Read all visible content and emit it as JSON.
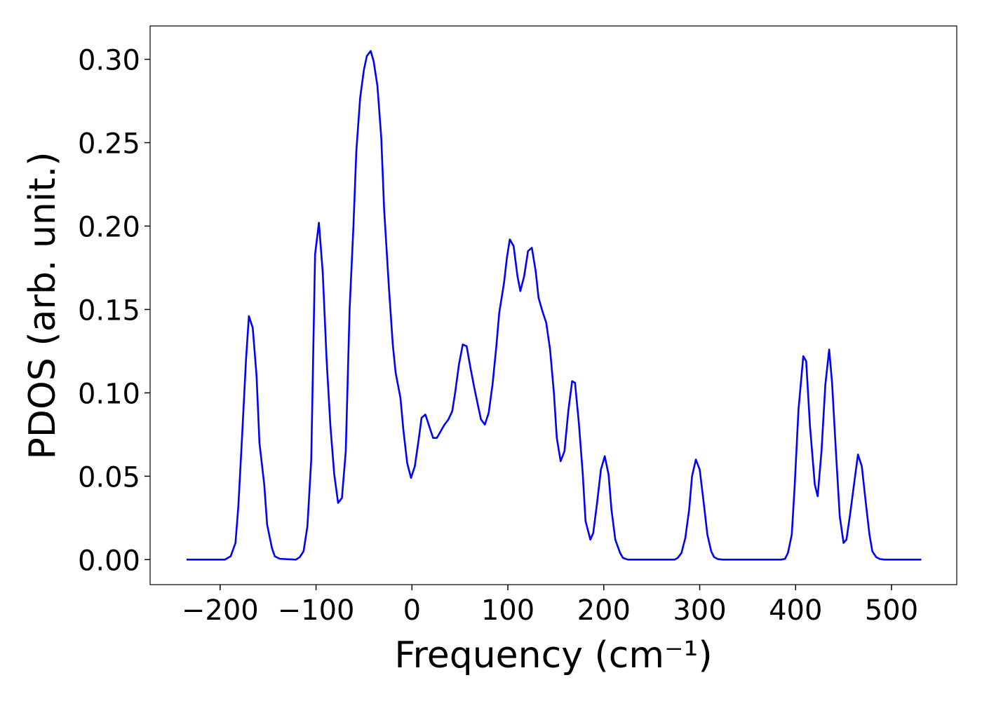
{
  "chart_data": {
    "type": "line",
    "xlabel": "Frequency (cm⁻¹)",
    "ylabel": "PDOS (arb. unit.)",
    "color": "#0000ff",
    "xlim": [
      -273,
      568
    ],
    "ylim": [
      -0.015,
      0.32
    ],
    "xticks": [
      {
        "value": -200,
        "label": "−200"
      },
      {
        "value": -100,
        "label": "−100"
      },
      0,
      100,
      200,
      300,
      400,
      500
    ],
    "yticks": [
      {
        "value": 0,
        "label": "0.00"
      },
      {
        "value": 0.05,
        "label": "0.05"
      },
      {
        "value": 0.1,
        "label": "0.10"
      },
      {
        "value": 0.15,
        "label": "0.15"
      },
      {
        "value": 0.2,
        "label": "0.20"
      },
      {
        "value": 0.25,
        "label": "0.25"
      },
      {
        "value": 0.3,
        "label": "0.30"
      }
    ],
    "x": [
      -235,
      -195,
      -189,
      -184,
      -181,
      -177,
      -173,
      -170,
      -166,
      -162,
      -159,
      -154,
      -151,
      -146,
      -143,
      -138,
      -121,
      -117,
      -113,
      -109,
      -105,
      -101,
      -97,
      -93,
      -89,
      -85,
      -81,
      -77,
      -73,
      -69,
      -65,
      -61,
      -58,
      -54,
      -50,
      -47,
      -43,
      -40,
      -36,
      -32,
      -29,
      -24,
      -20,
      -17,
      -12,
      -9,
      -5,
      -1,
      3,
      7,
      10,
      14,
      18,
      22,
      26,
      30,
      34,
      38,
      42,
      45,
      49,
      53,
      57,
      61,
      65,
      69,
      72,
      76,
      80,
      84,
      88,
      91,
      96,
      99,
      102,
      106,
      110,
      113,
      117,
      121,
      125,
      129,
      132,
      136,
      140,
      144,
      148,
      151,
      155,
      159,
      163,
      167,
      170,
      174,
      178,
      181,
      186,
      189,
      193,
      197,
      201,
      205,
      208,
      212,
      217,
      220,
      225,
      274,
      277,
      281,
      285,
      289,
      292,
      296,
      300,
      304,
      308,
      312,
      315,
      319,
      324,
      385,
      389,
      392,
      396,
      399,
      403,
      408,
      411,
      415,
      420,
      423,
      427,
      431,
      435,
      438,
      442,
      446,
      450,
      453,
      457,
      462,
      465,
      469,
      473,
      477,
      480,
      484,
      488,
      493,
      531
    ],
    "values": [
      0,
      0,
      0.002,
      0.01,
      0.032,
      0.075,
      0.12,
      0.146,
      0.139,
      0.11,
      0.07,
      0.045,
      0.021,
      0.007,
      0.002,
      0.0005,
      0,
      0.0015,
      0.005,
      0.02,
      0.06,
      0.183,
      0.202,
      0.172,
      0.12,
      0.08,
      0.051,
      0.034,
      0.037,
      0.065,
      0.15,
      0.2,
      0.245,
      0.277,
      0.294,
      0.302,
      0.305,
      0.299,
      0.284,
      0.253,
      0.21,
      0.163,
      0.129,
      0.112,
      0.097,
      0.078,
      0.058,
      0.049,
      0.056,
      0.072,
      0.085,
      0.087,
      0.08,
      0.073,
      0.073,
      0.077,
      0.081,
      0.084,
      0.089,
      0.1,
      0.117,
      0.129,
      0.128,
      0.115,
      0.103,
      0.092,
      0.084,
      0.081,
      0.088,
      0.105,
      0.128,
      0.148,
      0.166,
      0.181,
      0.192,
      0.188,
      0.17,
      0.161,
      0.17,
      0.185,
      0.187,
      0.173,
      0.157,
      0.149,
      0.142,
      0.126,
      0.1,
      0.073,
      0.059,
      0.065,
      0.089,
      0.107,
      0.106,
      0.082,
      0.052,
      0.023,
      0.012,
      0.016,
      0.034,
      0.054,
      0.062,
      0.051,
      0.03,
      0.012,
      0.004,
      0.001,
      0,
      0,
      0.001,
      0.004,
      0.013,
      0.03,
      0.05,
      0.06,
      0.054,
      0.035,
      0.015,
      0.005,
      0.0015,
      0.0003,
      0,
      0,
      0.0005,
      0.004,
      0.015,
      0.044,
      0.09,
      0.122,
      0.119,
      0.08,
      0.045,
      0.038,
      0.065,
      0.105,
      0.126,
      0.106,
      0.065,
      0.026,
      0.01,
      0.012,
      0.028,
      0.05,
      0.063,
      0.056,
      0.035,
      0.015,
      0.005,
      0.0015,
      0.0003,
      0,
      0
    ]
  }
}
